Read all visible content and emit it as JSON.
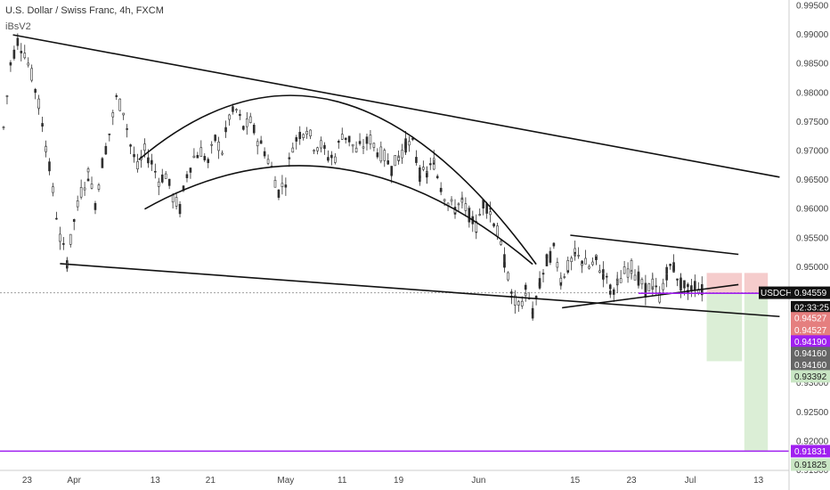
{
  "header": {
    "title": "U.S. Dollar / Swiss Franc, 4h, FXCM",
    "indicator": "iBsV2"
  },
  "colors": {
    "up": "#2e2e2e",
    "down": "#2e2e2e",
    "line": "#111111",
    "purple": "#a020f0",
    "stop_zone": "#f4c7c7",
    "target_zone": "#d7ecd2"
  },
  "chart_data": {
    "type": "candlestick",
    "symbol": "USDCHF",
    "ylim": [
      0.915,
      0.996
    ],
    "y_ticks": [
      "0.99500",
      "0.99000",
      "0.98500",
      "0.98000",
      "0.97500",
      "0.97000",
      "0.96500",
      "0.96000",
      "0.95500",
      "0.95000",
      "0.94500",
      "0.94000",
      "0.93500",
      "0.93000",
      "0.92500",
      "0.92000",
      "0.91500"
    ],
    "x_ticks": [
      "23",
      "Apr",
      "13",
      "21",
      "May",
      "11",
      "19",
      "Jun",
      "15",
      "23",
      "Jul",
      "13"
    ],
    "close_path": [
      [
        0,
        0.974
      ],
      [
        0.6,
        0.985
      ],
      [
        1.2,
        0.989
      ],
      [
        1.8,
        0.987
      ],
      [
        2.4,
        0.983
      ],
      [
        3.0,
        0.978
      ],
      [
        3.6,
        0.971
      ],
      [
        4.2,
        0.963
      ],
      [
        4.8,
        0.955
      ],
      [
        5.4,
        0.951
      ],
      [
        6.0,
        0.958
      ],
      [
        6.6,
        0.963
      ],
      [
        7.2,
        0.966
      ],
      [
        7.8,
        0.961
      ],
      [
        8.4,
        0.968
      ],
      [
        9.0,
        0.973
      ],
      [
        9.6,
        0.979
      ],
      [
        10.2,
        0.977
      ],
      [
        10.8,
        0.971
      ],
      [
        11.4,
        0.967
      ],
      [
        12.0,
        0.97
      ],
      [
        12.6,
        0.968
      ],
      [
        13.2,
        0.965
      ],
      [
        13.8,
        0.966
      ],
      [
        14.4,
        0.962
      ],
      [
        15.0,
        0.96
      ],
      [
        15.6,
        0.966
      ],
      [
        16.2,
        0.969
      ],
      [
        16.8,
        0.97
      ],
      [
        17.4,
        0.968
      ],
      [
        18.0,
        0.972
      ],
      [
        18.6,
        0.97
      ],
      [
        19.2,
        0.976
      ],
      [
        19.8,
        0.977
      ],
      [
        20.4,
        0.974
      ],
      [
        21.0,
        0.975
      ],
      [
        21.6,
        0.972
      ],
      [
        22.2,
        0.97
      ],
      [
        22.8,
        0.967
      ],
      [
        23.4,
        0.963
      ],
      [
        24.0,
        0.965
      ],
      [
        24.6,
        0.971
      ],
      [
        25.2,
        0.973
      ],
      [
        25.8,
        0.974
      ],
      [
        26.4,
        0.971
      ],
      [
        27.0,
        0.971
      ],
      [
        27.6,
        0.969
      ],
      [
        28.2,
        0.969
      ],
      [
        28.8,
        0.973
      ],
      [
        29.4,
        0.972
      ],
      [
        30.0,
        0.97
      ],
      [
        30.6,
        0.971
      ],
      [
        31.2,
        0.972
      ],
      [
        31.8,
        0.97
      ],
      [
        32.4,
        0.969
      ],
      [
        33.0,
        0.967
      ],
      [
        33.6,
        0.969
      ],
      [
        34.2,
        0.971
      ],
      [
        34.8,
        0.971
      ],
      [
        35.4,
        0.966
      ],
      [
        36.0,
        0.966
      ],
      [
        36.6,
        0.968
      ],
      [
        37.2,
        0.964
      ],
      [
        37.8,
        0.961
      ],
      [
        38.4,
        0.96
      ],
      [
        39.0,
        0.961
      ],
      [
        39.6,
        0.959
      ],
      [
        40.2,
        0.957
      ],
      [
        40.8,
        0.961
      ],
      [
        41.4,
        0.96
      ],
      [
        42.0,
        0.956
      ],
      [
        42.6,
        0.951
      ],
      [
        43.2,
        0.945
      ],
      [
        43.8,
        0.943
      ],
      [
        44.4,
        0.946
      ],
      [
        45.0,
        0.942
      ],
      [
        45.6,
        0.947
      ],
      [
        46.2,
        0.951
      ],
      [
        46.8,
        0.953
      ],
      [
        47.4,
        0.948
      ],
      [
        48.0,
        0.95
      ],
      [
        48.6,
        0.952
      ],
      [
        49.2,
        0.951
      ],
      [
        49.8,
        0.95
      ],
      [
        50.4,
        0.951
      ],
      [
        51.0,
        0.949
      ],
      [
        51.6,
        0.946
      ],
      [
        52.2,
        0.947
      ],
      [
        52.8,
        0.949
      ],
      [
        53.4,
        0.95
      ],
      [
        54.0,
        0.948
      ],
      [
        54.6,
        0.946
      ],
      [
        55.2,
        0.947
      ],
      [
        55.8,
        0.945
      ],
      [
        56.4,
        0.949
      ],
      [
        57.0,
        0.95
      ],
      [
        57.6,
        0.947
      ],
      [
        58.2,
        0.946
      ],
      [
        58.8,
        0.947
      ],
      [
        59.4,
        0.946
      ]
    ],
    "trend_lines": [
      {
        "name": "upper-channel-line",
        "from": [
          0.8,
          0.99
        ],
        "to": [
          66.0,
          0.9655
        ]
      },
      {
        "name": "lower-channel-line",
        "from": [
          4.8,
          0.9506
        ],
        "to": [
          66.0,
          0.9415
        ]
      },
      {
        "name": "flag-top-line",
        "from": [
          48.2,
          0.9555
        ],
        "to": [
          62.5,
          0.9522
        ]
      },
      {
        "name": "flag-bottom-line",
        "from": [
          47.5,
          0.943
        ],
        "to": [
          62.5,
          0.947
        ]
      },
      {
        "name": "short-level-line",
        "from": [
          54.0,
          0.9455
        ],
        "to": [
          65.5,
          0.9455
        ]
      }
    ],
    "arcs": [
      {
        "name": "outer-arc",
        "from": [
          11.5,
          0.9685
        ],
        "to": [
          45.3,
          0.9505
        ],
        "peak": 0.9785
      },
      {
        "name": "inner-arc",
        "from": [
          12.0,
          0.96
        ],
        "to": [
          45.0,
          0.9505
        ],
        "peak": 0.967
      }
    ],
    "zones": [
      {
        "name": "stop-zone-1",
        "x": [
          59.8,
          62.8
        ],
        "y": [
          0.9455,
          0.949
        ],
        "color": "#f4c7c7"
      },
      {
        "name": "stop-zone-2",
        "x": [
          63.0,
          65.0
        ],
        "y": [
          0.9455,
          0.949
        ],
        "color": "#f4c7c7"
      },
      {
        "name": "target-zone-1",
        "x": [
          59.8,
          62.8
        ],
        "y": [
          0.9338,
          0.9455
        ],
        "color": "#d7ecd2"
      },
      {
        "name": "target-zone-2",
        "x": [
          63.0,
          65.0
        ],
        "y": [
          0.9183,
          0.9455
        ],
        "color": "#d7ecd2"
      }
    ],
    "horizontal_lines": [
      {
        "name": "last-price-line",
        "value": 0.94559,
        "color": "#9e9e9e",
        "dashed": true
      },
      {
        "name": "support-line",
        "value": 0.91831,
        "color": "#a020f0",
        "dashed": false
      }
    ],
    "x_max": 66.5
  },
  "price_tags": [
    {
      "label": "USDCHF",
      "value": "0.94559",
      "bg": "#111111",
      "fg": "#ffffff",
      "y": 0.94559
    },
    {
      "label": "",
      "value": "02:33:25",
      "bg": "#111111",
      "fg": "#ffffff",
      "y": 0.9431
    },
    {
      "label": "",
      "value": "0.94527",
      "bg": "#e57f7f",
      "fg": "#ffffff",
      "y": 0.9412
    },
    {
      "label": "",
      "value": "0.94527",
      "bg": "#e57f7f",
      "fg": "#ffffff",
      "y": 0.9392
    },
    {
      "label": "",
      "value": "0.94190",
      "bg": "#a020f0",
      "fg": "#ffffff",
      "y": 0.9372
    },
    {
      "label": "",
      "value": "0.94160",
      "bg": "#666666",
      "fg": "#ffffff",
      "y": 0.9352
    },
    {
      "label": "",
      "value": "0.94160",
      "bg": "#666666",
      "fg": "#ffffff",
      "y": 0.9332
    },
    {
      "label": "",
      "value": "0.93392",
      "bg": "#c9e6c4",
      "fg": "#222222",
      "y": 0.9312
    },
    {
      "label": "",
      "value": "0.91831",
      "bg": "#a020f0",
      "fg": "#ffffff",
      "y": 0.91831
    },
    {
      "label": "",
      "value": "0.91825",
      "bg": "#c9e6c4",
      "fg": "#222222",
      "y": 0.916
    }
  ]
}
